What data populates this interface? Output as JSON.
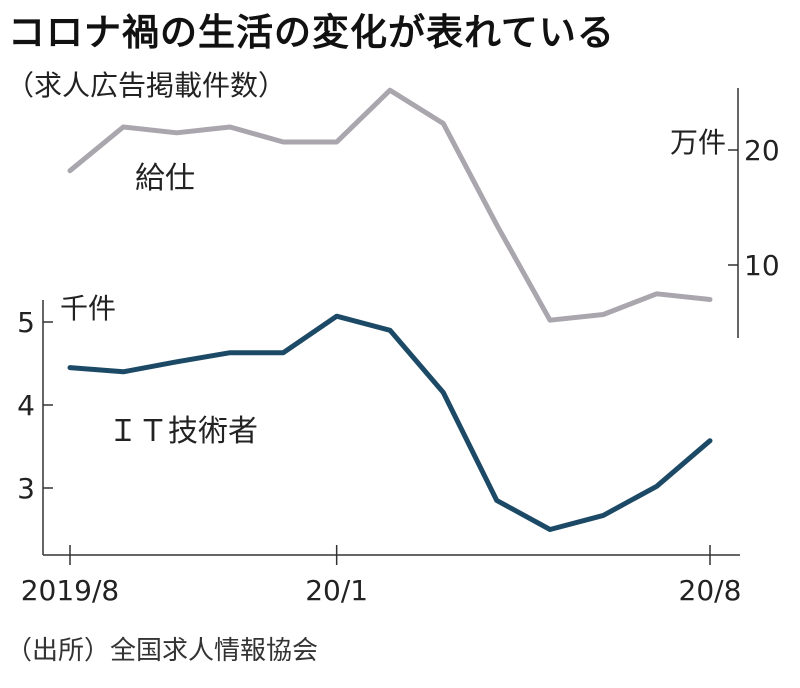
{
  "title": "コロナ禍の生活の変化が表れている",
  "subtitle": "（求人広告掲載件数）",
  "source": "（出所）全国求人情報協会",
  "chart_data": {
    "type": "line",
    "x_labels": [
      "2019/8",
      "20/1",
      "20/8"
    ],
    "x": [
      "2019/8",
      "2019/9",
      "2019/10",
      "2019/11",
      "2019/12",
      "2020/1",
      "2020/2",
      "2020/3",
      "2020/4",
      "2020/5",
      "2020/6",
      "2020/7",
      "2020/8"
    ],
    "series": [
      {
        "name": "給仕",
        "unit": "万件",
        "axis": "right",
        "color": "#a9a6ad",
        "values": [
          18.2,
          22.0,
          21.5,
          22.0,
          20.7,
          20.7,
          25.2,
          22.3,
          13.5,
          5.2,
          5.7,
          7.5,
          7.0
        ]
      },
      {
        "name": "ＩＴ技術者",
        "unit": "千件",
        "axis": "left",
        "color": "#1c4a66",
        "values": [
          4.45,
          4.4,
          4.52,
          4.63,
          4.63,
          5.07,
          4.9,
          4.15,
          2.85,
          2.5,
          2.67,
          3.02,
          3.57
        ]
      }
    ],
    "left_axis": {
      "ticks": [
        3,
        4,
        5
      ]
    },
    "right_axis": {
      "ticks": [
        10,
        20
      ]
    }
  }
}
